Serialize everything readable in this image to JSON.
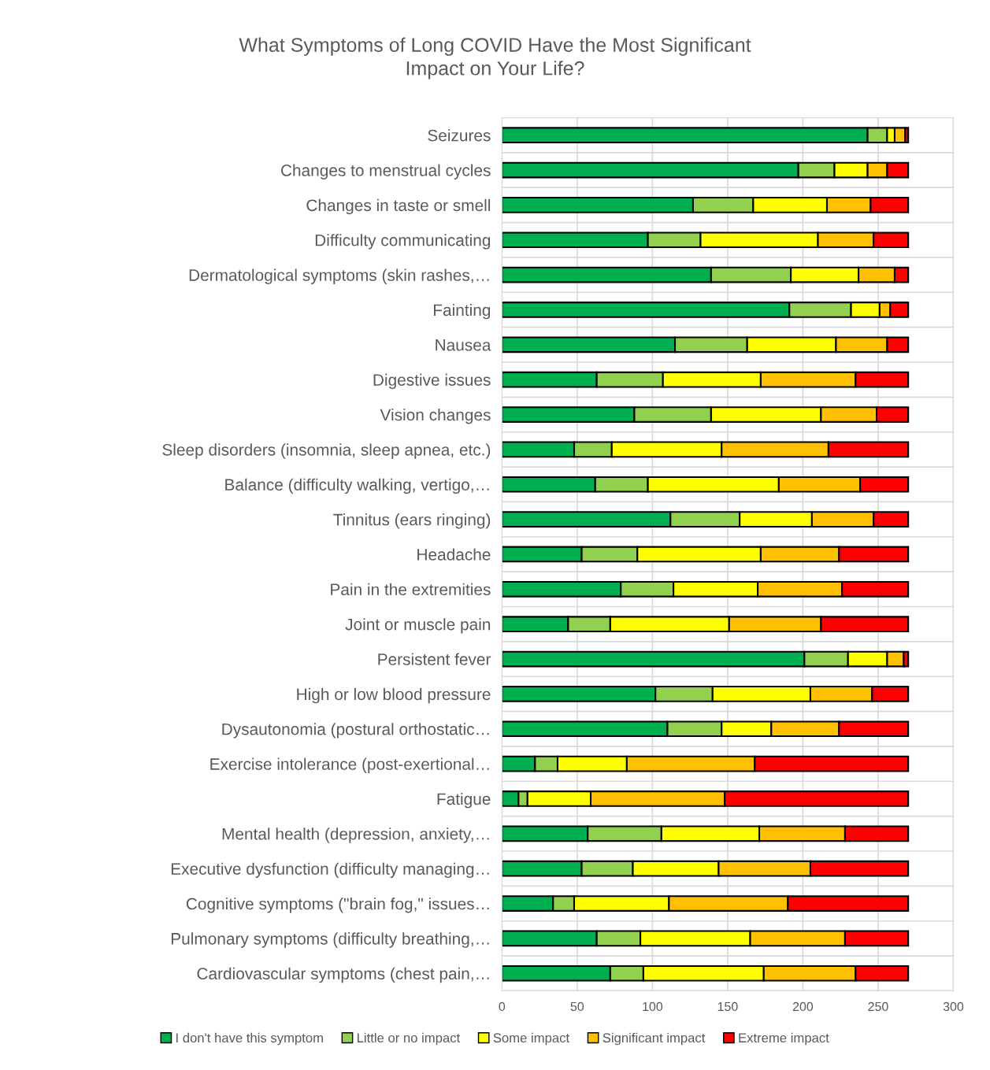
{
  "chart_data": {
    "type": "bar",
    "orientation": "horizontal",
    "stacked": true,
    "title": "What Symptoms of Long COVID Have the Most Significant\nImpact on Your Life?",
    "categories": [
      "Seizures",
      "Changes to menstrual cycles",
      "Changes in taste or smell",
      "Difficulty communicating",
      "Dermatological symptoms (skin rashes,…",
      "Fainting",
      "Nausea",
      "Digestive issues",
      "Vision changes",
      "Sleep disorders (insomnia, sleep apnea, etc.)",
      "Balance (difficulty walking, vertigo,…",
      "Tinnitus (ears ringing)",
      "Headache",
      "Pain in the extremities",
      "Joint or muscle pain",
      "Persistent fever",
      "High or low blood pressure",
      "Dysautonomia (postural orthostatic…",
      "Exercise intolerance (post-exertional…",
      "Fatigue",
      "Mental health (depression, anxiety,…",
      "Executive dysfunction (difficulty managing…",
      "Cognitive symptoms (\"brain fog,\" issues…",
      "Pulmonary symptoms (difficulty breathing,…",
      "Cardiovascular symptoms (chest pain,…"
    ],
    "series": [
      {
        "name": "I don't have this symptom",
        "color": "#00b050",
        "values": [
          243,
          197,
          127,
          97,
          139,
          191,
          115,
          63,
          88,
          48,
          62,
          112,
          53,
          79,
          44,
          201,
          102,
          110,
          22,
          11,
          57,
          53,
          34,
          63,
          72
        ]
      },
      {
        "name": "Little or no impact",
        "color": "#92d050",
        "values": [
          13,
          24,
          40,
          35,
          53,
          41,
          48,
          44,
          51,
          25,
          35,
          46,
          37,
          35,
          28,
          29,
          38,
          36,
          15,
          6,
          49,
          34,
          14,
          29,
          22
        ]
      },
      {
        "name": "Some impact",
        "color": "#ffff00",
        "values": [
          5,
          22,
          49,
          78,
          45,
          19,
          59,
          65,
          73,
          73,
          87,
          48,
          82,
          56,
          79,
          26,
          65,
          33,
          46,
          42,
          65,
          57,
          63,
          73,
          80
        ]
      },
      {
        "name": "Significant impact",
        "color": "#ffc000",
        "values": [
          7,
          13,
          29,
          37,
          24,
          7,
          34,
          63,
          37,
          71,
          54,
          41,
          52,
          56,
          61,
          11,
          41,
          45,
          85,
          89,
          57,
          61,
          79,
          63,
          61
        ]
      },
      {
        "name": "Extreme impact",
        "color": "#ff0000",
        "values": [
          2,
          14,
          25,
          23,
          9,
          12,
          14,
          35,
          21,
          53,
          32,
          23,
          46,
          44,
          58,
          3,
          24,
          46,
          102,
          122,
          42,
          65,
          80,
          42,
          35
        ]
      }
    ],
    "xlim": [
      0,
      300
    ],
    "xticks": [
      0,
      50,
      100,
      150,
      200,
      250,
      300
    ],
    "grid": true,
    "legend": "bottom"
  }
}
